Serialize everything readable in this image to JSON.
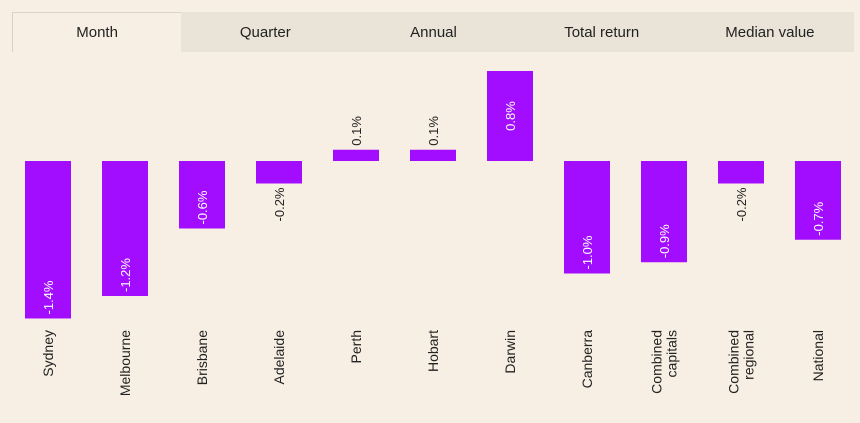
{
  "tabs": [
    {
      "label": "Month",
      "active": true
    },
    {
      "label": "Quarter",
      "active": false
    },
    {
      "label": "Annual",
      "active": false
    },
    {
      "label": "Total return",
      "active": false
    },
    {
      "label": "Median value",
      "active": false
    }
  ],
  "colors": {
    "bar": "#a30dff",
    "background": "#f7efe3",
    "tab_bar": "#e9e3d8"
  },
  "chart_data": {
    "type": "bar",
    "title": "",
    "xlabel": "",
    "ylabel": "",
    "categories": [
      [
        "Sydney"
      ],
      [
        "Melbourne"
      ],
      [
        "Brisbane"
      ],
      [
        "Adelaide"
      ],
      [
        "Perth"
      ],
      [
        "Hobart"
      ],
      [
        "Darwin"
      ],
      [
        "Canberra"
      ],
      [
        "Combined",
        "capitals"
      ],
      [
        "Combined",
        "regional"
      ],
      [
        "National"
      ]
    ],
    "values": [
      -1.4,
      -1.2,
      -0.6,
      -0.2,
      0.1,
      0.1,
      0.8,
      -1.0,
      -0.9,
      -0.2,
      -0.7
    ],
    "data_labels": [
      "-1.4%",
      "-1.2%",
      "-0.6%",
      "-0.2%",
      "0.1%",
      "0.1%",
      "0.8%",
      "-1.0%",
      "-0.9%",
      "-0.2%",
      "-0.7%"
    ],
    "ylim": [
      -1.4,
      0.8
    ],
    "grid": false,
    "legend": "none"
  }
}
